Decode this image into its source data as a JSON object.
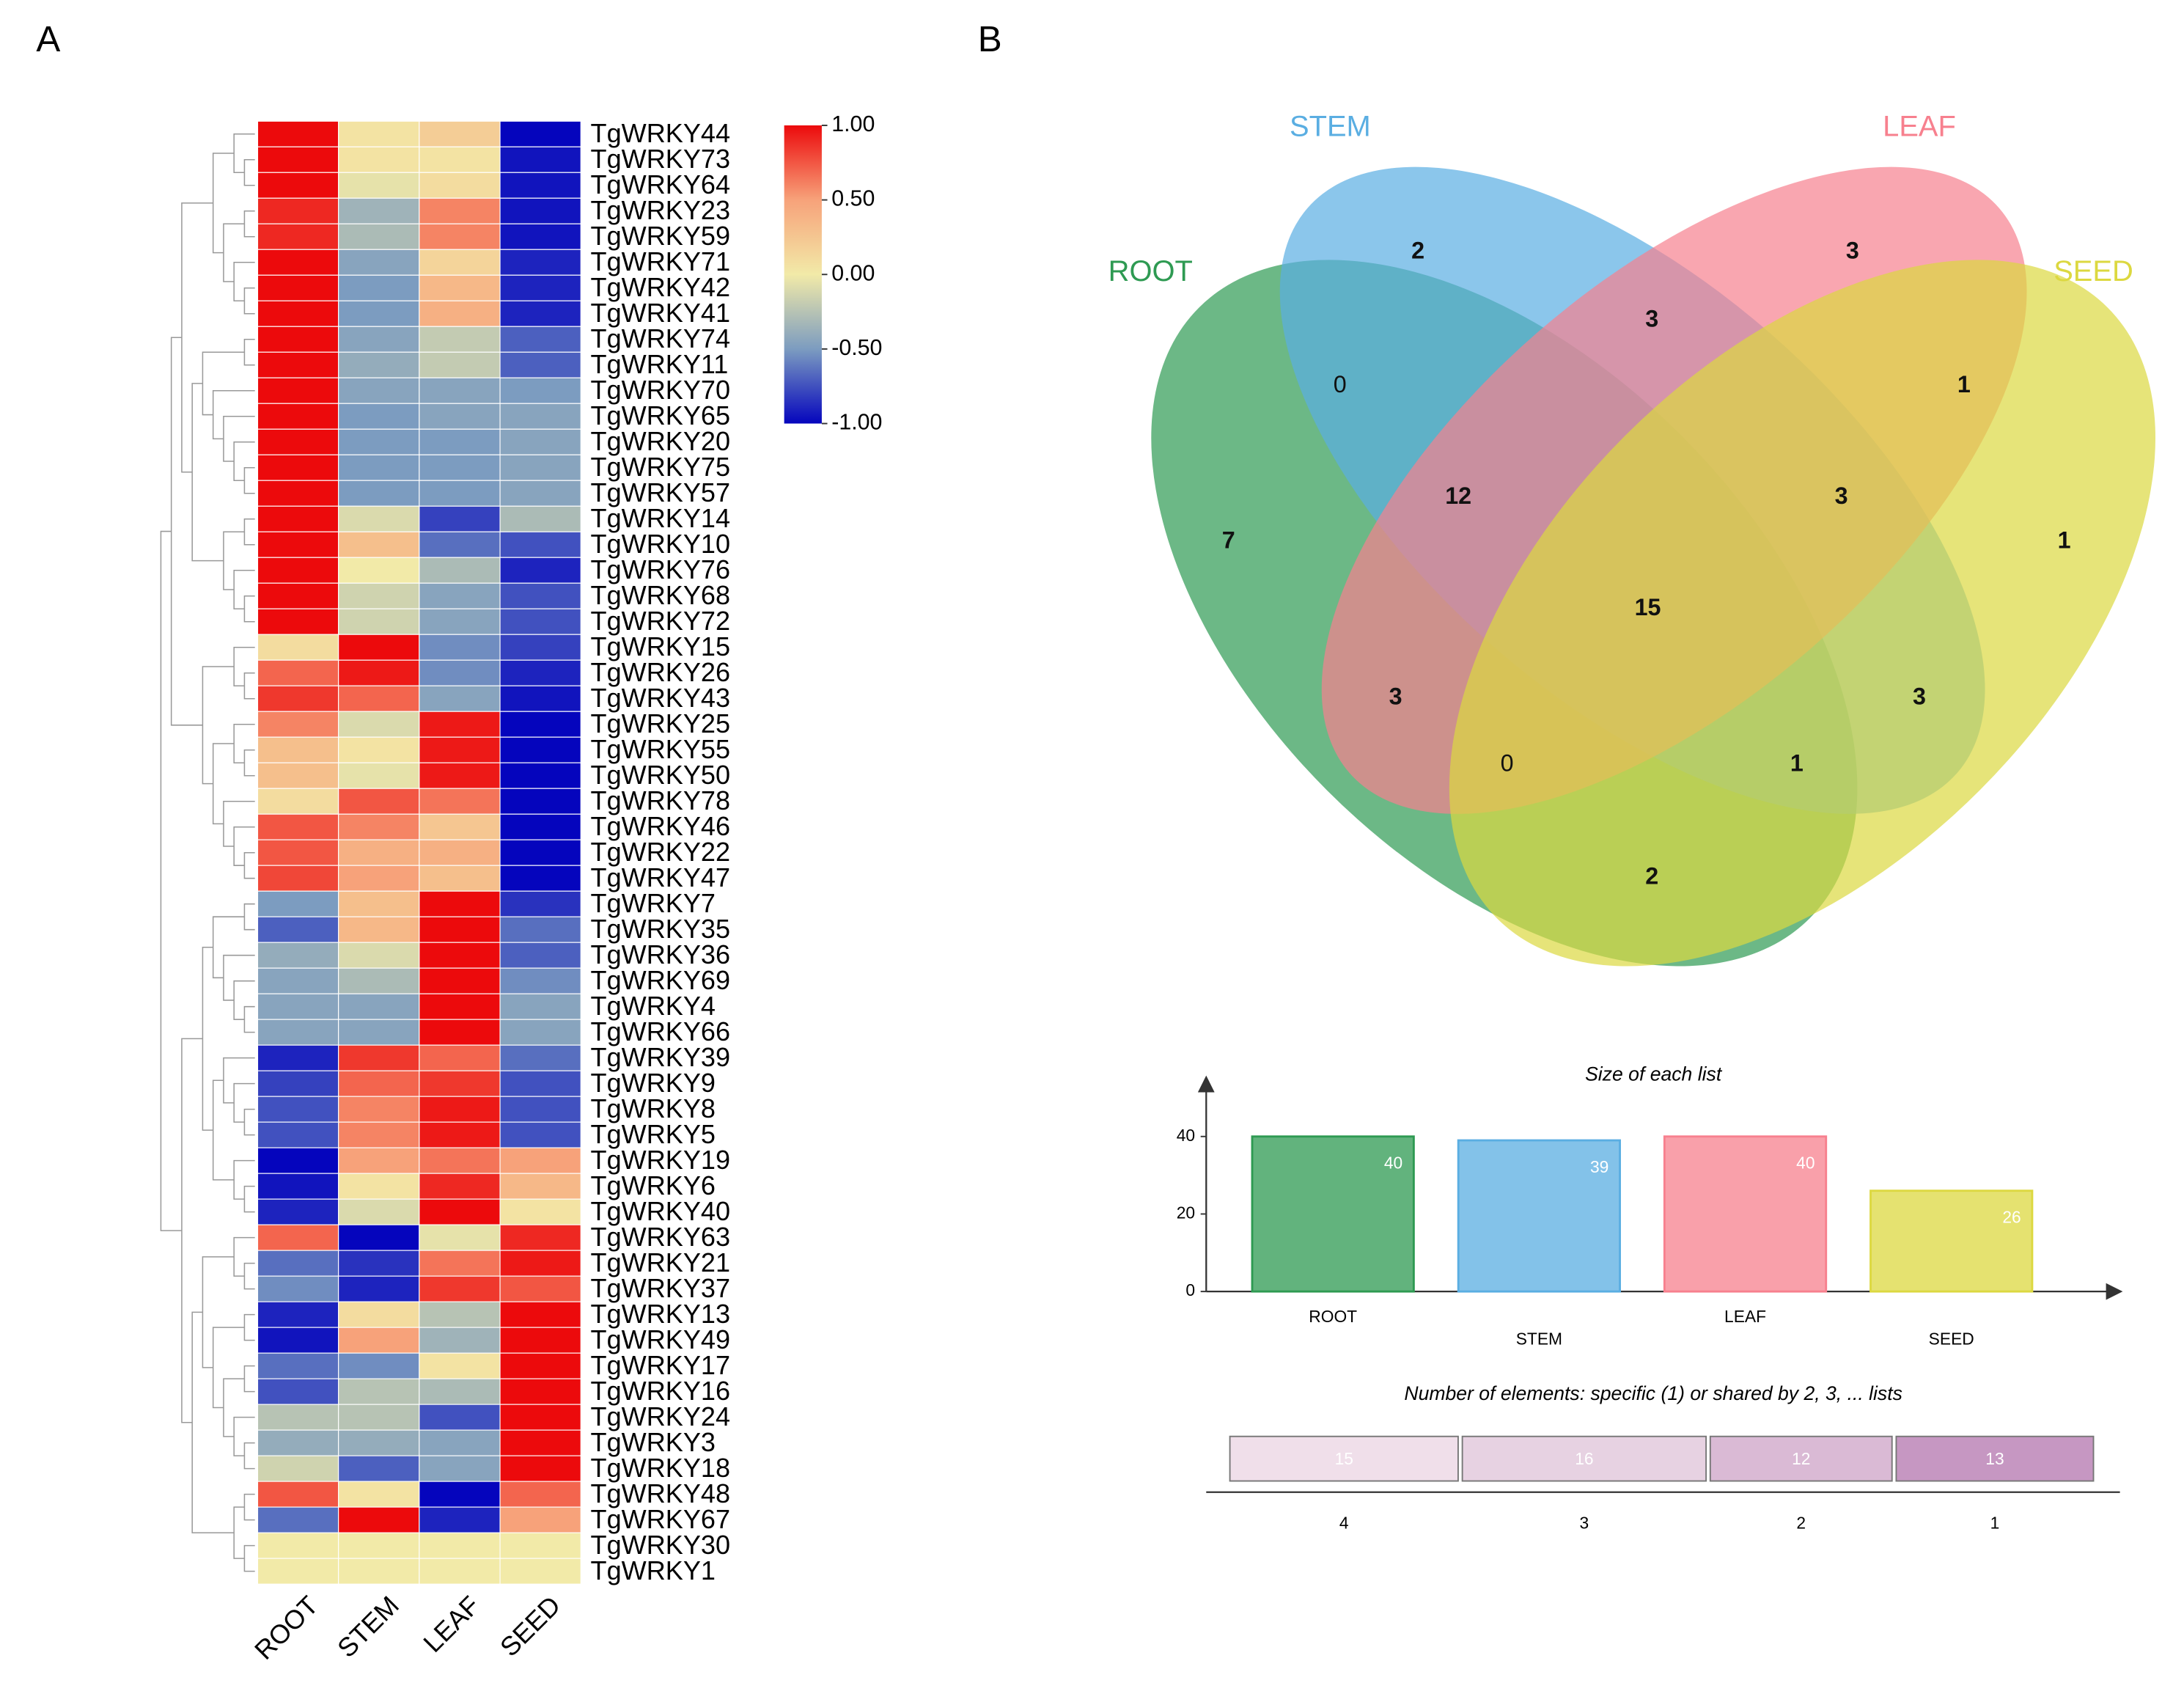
{
  "panel_labels": [
    "A",
    "B"
  ],
  "chart_data": [
    {
      "type": "heatmap",
      "columns": [
        "ROOT",
        "STEM",
        "LEAF",
        "SEED"
      ],
      "rows": [
        "TgWRKY44",
        "TgWRKY73",
        "TgWRKY64",
        "TgWRKY23",
        "TgWRKY59",
        "TgWRKY71",
        "TgWRKY42",
        "TgWRKY41",
        "TgWRKY74",
        "TgWRKY11",
        "TgWRKY70",
        "TgWRKY65",
        "TgWRKY20",
        "TgWRKY75",
        "TgWRKY57",
        "TgWRKY14",
        "TgWRKY10",
        "TgWRKY76",
        "TgWRKY68",
        "TgWRKY72",
        "TgWRKY15",
        "TgWRKY26",
        "TgWRKY43",
        "TgWRKY25",
        "TgWRKY55",
        "TgWRKY50",
        "TgWRKY78",
        "TgWRKY46",
        "TgWRKY22",
        "TgWRKY47",
        "TgWRKY7",
        "TgWRKY35",
        "TgWRKY36",
        "TgWRKY69",
        "TgWRKY4",
        "TgWRKY66",
        "TgWRKY39",
        "TgWRKY9",
        "TgWRKY8",
        "TgWRKY5",
        "TgWRKY19",
        "TgWRKY6",
        "TgWRKY40",
        "TgWRKY63",
        "TgWRKY21",
        "TgWRKY37",
        "TgWRKY13",
        "TgWRKY49",
        "TgWRKY17",
        "TgWRKY16",
        "TgWRKY24",
        "TgWRKY3",
        "TgWRKY18",
        "TgWRKY48",
        "TgWRKY67",
        "TgWRKY30",
        "TgWRKY1"
      ],
      "values": [
        [
          1,
          0.05,
          0.2,
          -1
        ],
        [
          1,
          0.05,
          0.05,
          -0.95
        ],
        [
          1,
          -0.05,
          0.1,
          -0.95
        ],
        [
          0.9,
          -0.35,
          0.6,
          -0.95
        ],
        [
          0.9,
          -0.3,
          0.6,
          -0.95
        ],
        [
          1,
          -0.45,
          0.15,
          -0.9
        ],
        [
          1,
          -0.5,
          0.35,
          -0.9
        ],
        [
          1,
          -0.5,
          0.4,
          -0.9
        ],
        [
          1,
          -0.45,
          -0.2,
          -0.7
        ],
        [
          1,
          -0.4,
          -0.2,
          -0.7
        ],
        [
          1,
          -0.45,
          -0.45,
          -0.5
        ],
        [
          1,
          -0.5,
          -0.45,
          -0.45
        ],
        [
          1,
          -0.5,
          -0.5,
          -0.45
        ],
        [
          1,
          -0.5,
          -0.5,
          -0.45
        ],
        [
          1,
          -0.5,
          -0.5,
          -0.45
        ],
        [
          1,
          -0.1,
          -0.8,
          -0.3
        ],
        [
          1,
          0.3,
          -0.65,
          -0.75
        ],
        [
          1,
          0,
          -0.3,
          -0.9
        ],
        [
          1,
          -0.15,
          -0.45,
          -0.75
        ],
        [
          1,
          -0.15,
          -0.45,
          -0.75
        ],
        [
          0.1,
          1,
          -0.55,
          -0.8
        ],
        [
          0.7,
          0.95,
          -0.55,
          -0.9
        ],
        [
          0.85,
          0.7,
          -0.45,
          -0.95
        ],
        [
          0.6,
          -0.1,
          0.95,
          -1
        ],
        [
          0.3,
          0.05,
          0.95,
          -1
        ],
        [
          0.3,
          -0.05,
          0.95,
          -1
        ],
        [
          0.1,
          0.75,
          0.65,
          -1
        ],
        [
          0.75,
          0.6,
          0.25,
          -1
        ],
        [
          0.75,
          0.4,
          0.4,
          -1
        ],
        [
          0.8,
          0.5,
          0.3,
          -1
        ],
        [
          -0.5,
          0.3,
          1,
          -0.85
        ],
        [
          -0.7,
          0.35,
          1,
          -0.65
        ],
        [
          -0.4,
          -0.1,
          1,
          -0.7
        ],
        [
          -0.45,
          -0.3,
          1,
          -0.55
        ],
        [
          -0.45,
          -0.45,
          1,
          -0.45
        ],
        [
          -0.45,
          -0.45,
          1,
          -0.45
        ],
        [
          -0.9,
          0.85,
          0.7,
          -0.65
        ],
        [
          -0.8,
          0.7,
          0.85,
          -0.75
        ],
        [
          -0.75,
          0.6,
          0.95,
          -0.75
        ],
        [
          -0.75,
          0.6,
          0.95,
          -0.75
        ],
        [
          -1,
          0.5,
          0.65,
          0.5
        ],
        [
          -0.95,
          0.05,
          0.9,
          0.35
        ],
        [
          -0.9,
          -0.1,
          1,
          0.05
        ],
        [
          0.7,
          -1,
          -0.05,
          0.9
        ],
        [
          -0.65,
          -0.85,
          0.65,
          0.95
        ],
        [
          -0.55,
          -0.9,
          0.85,
          0.75
        ],
        [
          -0.9,
          0.1,
          -0.25,
          1
        ],
        [
          -0.95,
          0.5,
          -0.35,
          1
        ],
        [
          -0.65,
          -0.55,
          0.05,
          1
        ],
        [
          -0.75,
          -0.25,
          -0.3,
          1
        ],
        [
          -0.25,
          -0.25,
          -0.75,
          1
        ],
        [
          -0.4,
          -0.4,
          -0.45,
          1
        ],
        [
          -0.15,
          -0.7,
          -0.45,
          1
        ],
        [
          0.75,
          0.05,
          -1,
          0.7
        ],
        [
          -0.65,
          1,
          -0.9,
          0.5
        ],
        [
          0,
          0,
          0,
          0
        ],
        [
          0,
          0,
          0,
          0
        ]
      ],
      "zlim": [
        -1,
        1
      ],
      "zticks": [
        {
          "value": 1,
          "label": "1.00"
        },
        {
          "value": 0.5,
          "label": "0.50"
        },
        {
          "value": 0,
          "label": "0.00"
        },
        {
          "value": -0.5,
          "label": "-0.50"
        },
        {
          "value": -1,
          "label": "-1.00"
        }
      ],
      "colors": [
        "#0505bd",
        "#7c9cc0",
        "#f2eaa8",
        "#f7a27a",
        "#ec0a0c"
      ]
    },
    {
      "type": "venn",
      "sets": [
        {
          "name": "ROOT",
          "color": "#2e9a52"
        },
        {
          "name": "STEM",
          "color": "#5aaee2"
        },
        {
          "name": "LEAF",
          "color": "#f7808e"
        },
        {
          "name": "SEED",
          "color": "#dcd840"
        }
      ],
      "values": [
        2,
        3,
        3,
        0,
        1,
        12,
        3,
        7,
        1,
        15,
        3,
        3,
        0,
        1,
        2
      ]
    },
    {
      "type": "bar",
      "title": "Size of each list",
      "categories": [
        "ROOT",
        "STEM",
        "LEAF",
        "SEED"
      ],
      "values": [
        40,
        39,
        40,
        26
      ],
      "colors": [
        "#2e9a52",
        "#5aaee2",
        "#f7808e",
        "#dcd840"
      ],
      "ylim": [
        0,
        55
      ],
      "yticks": [
        0,
        20,
        40
      ]
    },
    {
      "type": "stacked_bar",
      "title": "Number of elements: specific (1) or shared by 2, 3, ... lists",
      "categories": [
        "4",
        "3",
        "2",
        "1"
      ],
      "values": [
        15,
        16,
        12,
        13
      ],
      "colors": [
        "#f0dfea",
        "#e7d2e2",
        "#dabad5",
        "#c697c2"
      ]
    }
  ]
}
